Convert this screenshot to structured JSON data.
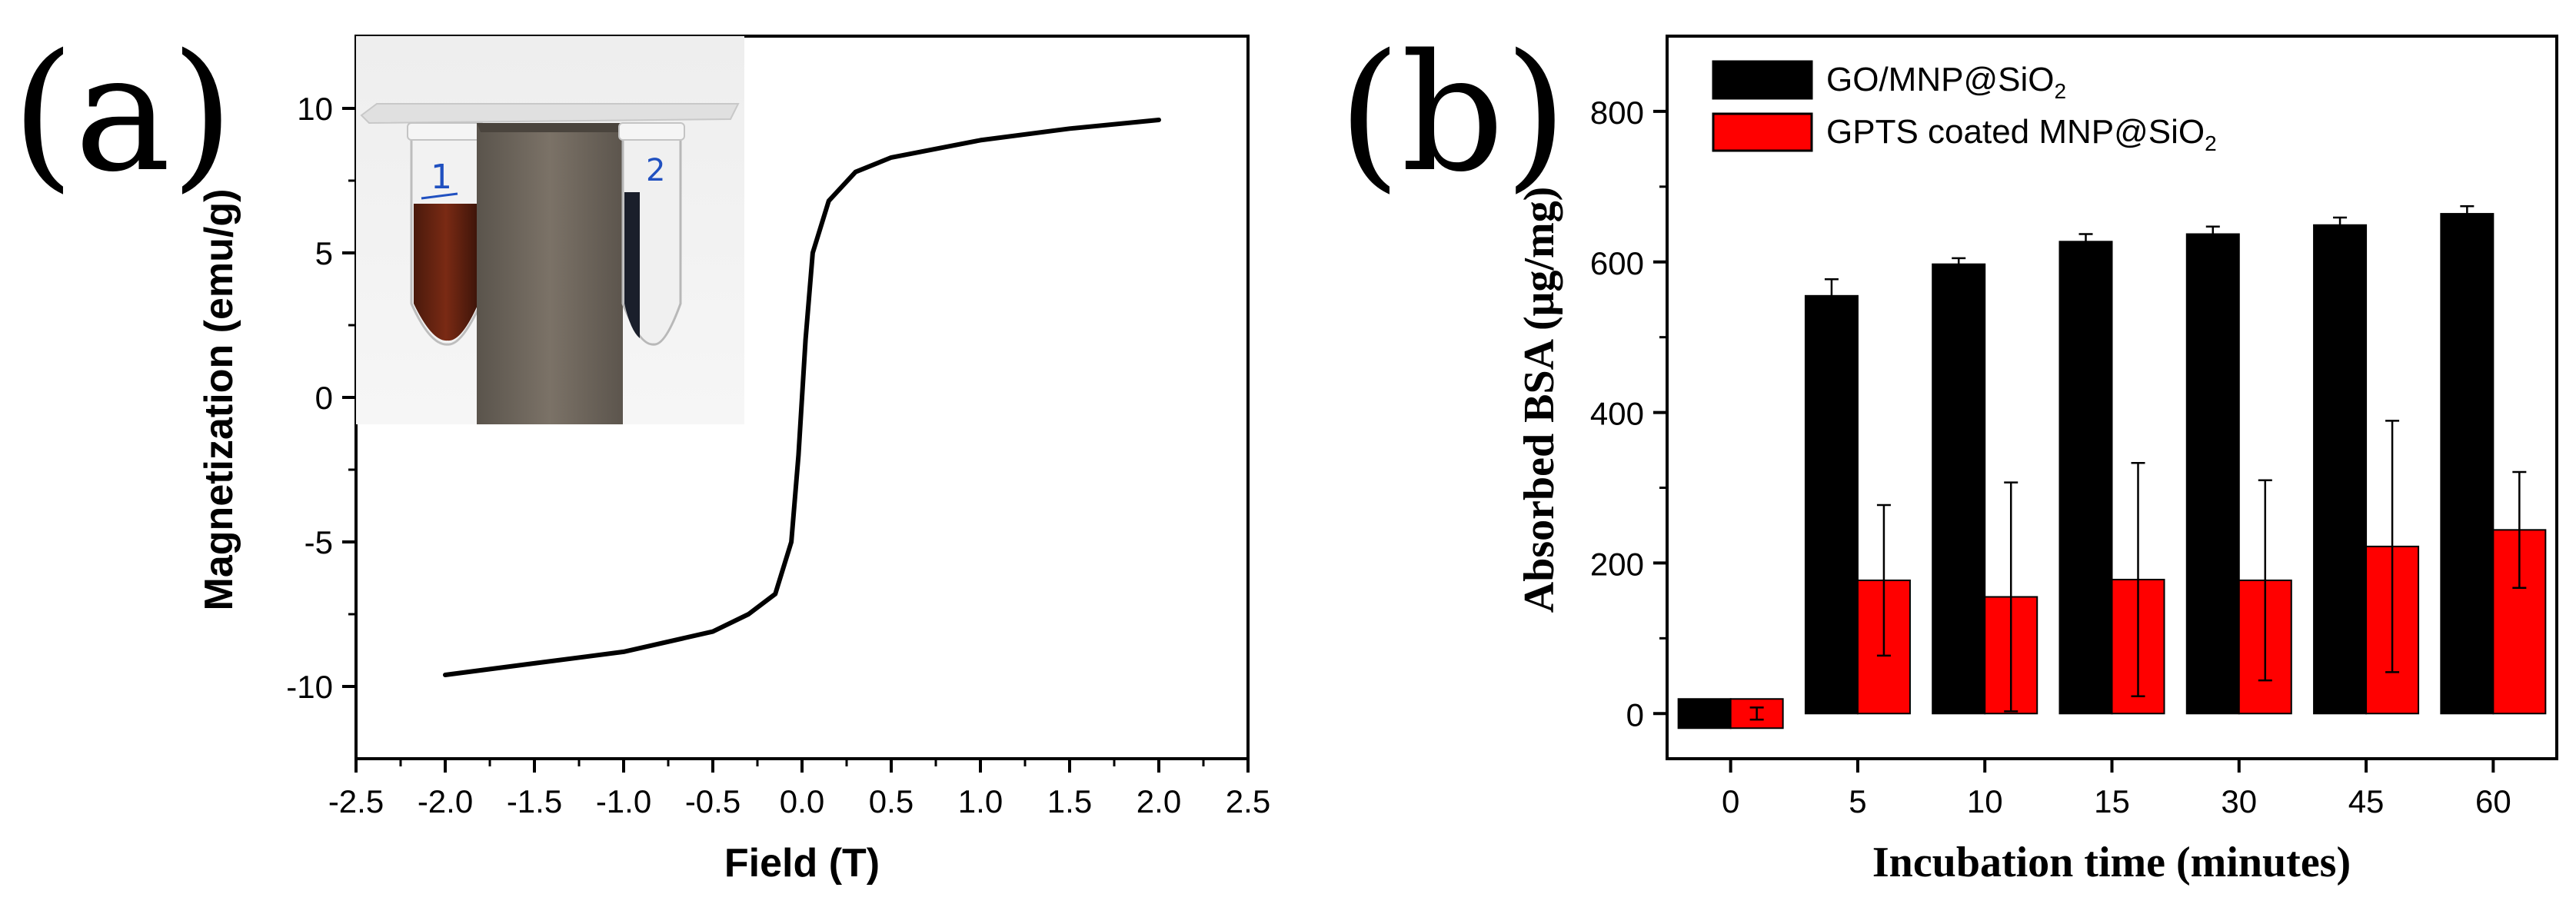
{
  "chart_data": [
    {
      "panel_label": "(a)",
      "type": "line",
      "title": "",
      "xlabel": "Field (T)",
      "ylabel": "Magnetization (emu/g)",
      "xlim": [
        -2.5,
        2.5
      ],
      "ylim": [
        -12.5,
        12.5
      ],
      "xticks": [
        -2.5,
        -2.0,
        -1.5,
        -1.0,
        -0.5,
        0.0,
        0.5,
        1.0,
        1.5,
        2.0,
        2.5
      ],
      "xtick_labels": [
        "-2.5",
        "-2.0",
        "-1.5",
        "-1.0",
        "-0.5",
        "0.0",
        "0.5",
        "1.0",
        "1.5",
        "2.0",
        "2.5"
      ],
      "yticks": [
        -10,
        -5,
        0,
        5,
        10
      ],
      "ytick_labels": [
        "-10",
        "-5",
        "0",
        "5",
        "10"
      ],
      "series": [
        {
          "name": "magnetization",
          "color": "#000000",
          "x": [
            -2.0,
            -1.5,
            -1.0,
            -0.5,
            -0.3,
            -0.15,
            -0.06,
            -0.02,
            0.0,
            0.02,
            0.06,
            0.15,
            0.3,
            0.5,
            1.0,
            1.5,
            2.0
          ],
          "y": [
            -9.6,
            -9.2,
            -8.8,
            -8.1,
            -7.5,
            -6.8,
            -5.0,
            -2.0,
            0.0,
            2.0,
            5.0,
            6.8,
            7.8,
            8.3,
            8.9,
            9.3,
            9.6
          ]
        }
      ],
      "inset": {
        "description_visible": "photo inset",
        "tube_label_1": "1",
        "tube_label_2": "2"
      }
    },
    {
      "panel_label": "(b)",
      "type": "bar",
      "title": "",
      "xlabel": "Incubation time (minutes)",
      "ylabel": "Absorbed BSA (μg/mg)",
      "ylim": [
        -60,
        900
      ],
      "yticks": [
        0,
        200,
        400,
        600,
        800
      ],
      "ytick_labels": [
        "0",
        "200",
        "400",
        "600",
        "800"
      ],
      "categories": [
        "0",
        "5",
        "10",
        "15",
        "30",
        "45",
        "60"
      ],
      "legend_position": "top-left",
      "series": [
        {
          "name": "GO/MNP@SiO",
          "name_subscript": "2",
          "color": "#000000",
          "values": [
            0,
            555,
            597,
            627,
            637,
            649,
            664
          ],
          "errors": [
            8,
            22,
            8,
            10,
            10,
            10,
            10
          ]
        },
        {
          "name": "GPTS coated MNP@SiO",
          "name_subscript": "2",
          "color": "#ff0000",
          "values": [
            0,
            177,
            155,
            178,
            177,
            222,
            244
          ],
          "errors": [
            8,
            100,
            152,
            155,
            133,
            167,
            77
          ]
        }
      ]
    }
  ]
}
